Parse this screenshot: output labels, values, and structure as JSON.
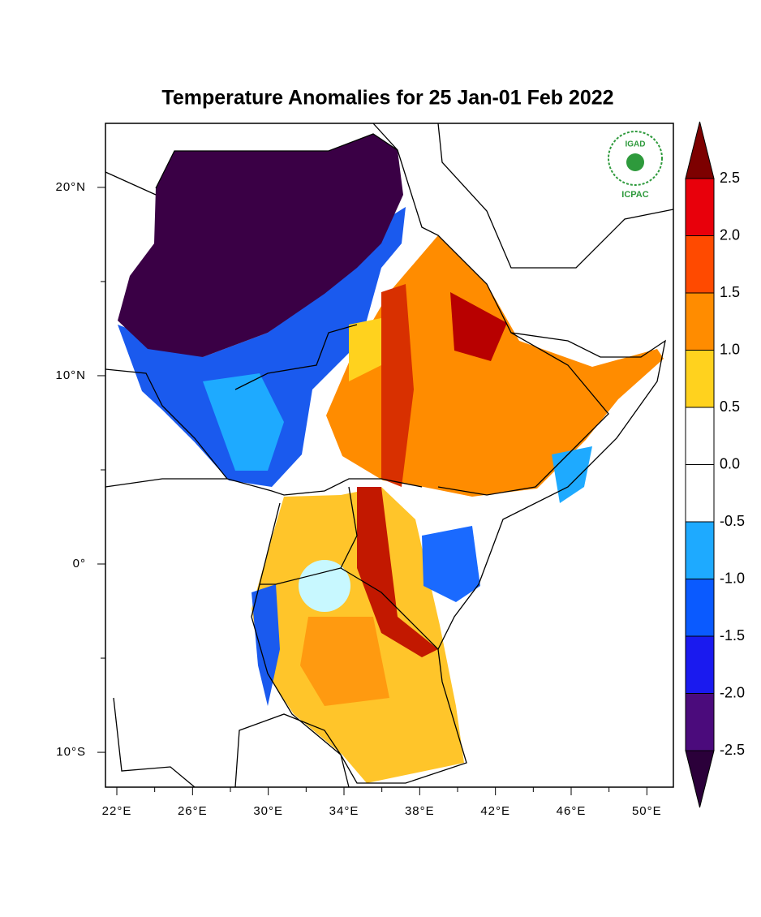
{
  "chart_data": {
    "type": "map",
    "title": "Temperature Anomalies for 25 Jan-01 Feb 2022",
    "logo": {
      "top": "IGAD",
      "bottom": "ICPAC"
    },
    "xlim": [
      21.4,
      51.4
    ],
    "ylim": [
      -11.85,
      23.4
    ],
    "xticks": [
      {
        "value": 22,
        "label": "22°E"
      },
      {
        "value": 26,
        "label": "26°E"
      },
      {
        "value": 30,
        "label": "30°E"
      },
      {
        "value": 34,
        "label": "34°E"
      },
      {
        "value": 38,
        "label": "38°E"
      },
      {
        "value": 42,
        "label": "42°E"
      },
      {
        "value": 46,
        "label": "46°E"
      },
      {
        "value": 50,
        "label": "50°E"
      }
    ],
    "xticks_minor": [
      24,
      28,
      32,
      36,
      40,
      44,
      48
    ],
    "yticks": [
      {
        "value": 20,
        "label": "20°N"
      },
      {
        "value": 10,
        "label": "10°N"
      },
      {
        "value": 0,
        "label": "0°"
      },
      {
        "value": -10,
        "label": "10°S"
      }
    ],
    "yticks_minor": [
      15,
      5,
      -5
    ],
    "colorbar": {
      "levels": [
        2.5,
        {
          "value": 2,
          "label": "2.0"
        },
        1.5,
        {
          "value": 1,
          "label": "1.0"
        },
        0.5,
        {
          "value": 0,
          "label": "0.0"
        },
        -0.5,
        {
          "value": -1,
          "label": "-1.0"
        },
        -1.5,
        {
          "value": -2,
          "label": "-2.0"
        },
        -2.5
      ],
      "colors": [
        "#7d0000",
        "#e8000b",
        "#ff4a00",
        "#ff8c00",
        "#ffd21e",
        "#ffffff",
        "#ffffff",
        "#1eaaff",
        "#0a5aff",
        "#1a1aef",
        "#4b0b7c",
        "#2b003a"
      ]
    }
  }
}
